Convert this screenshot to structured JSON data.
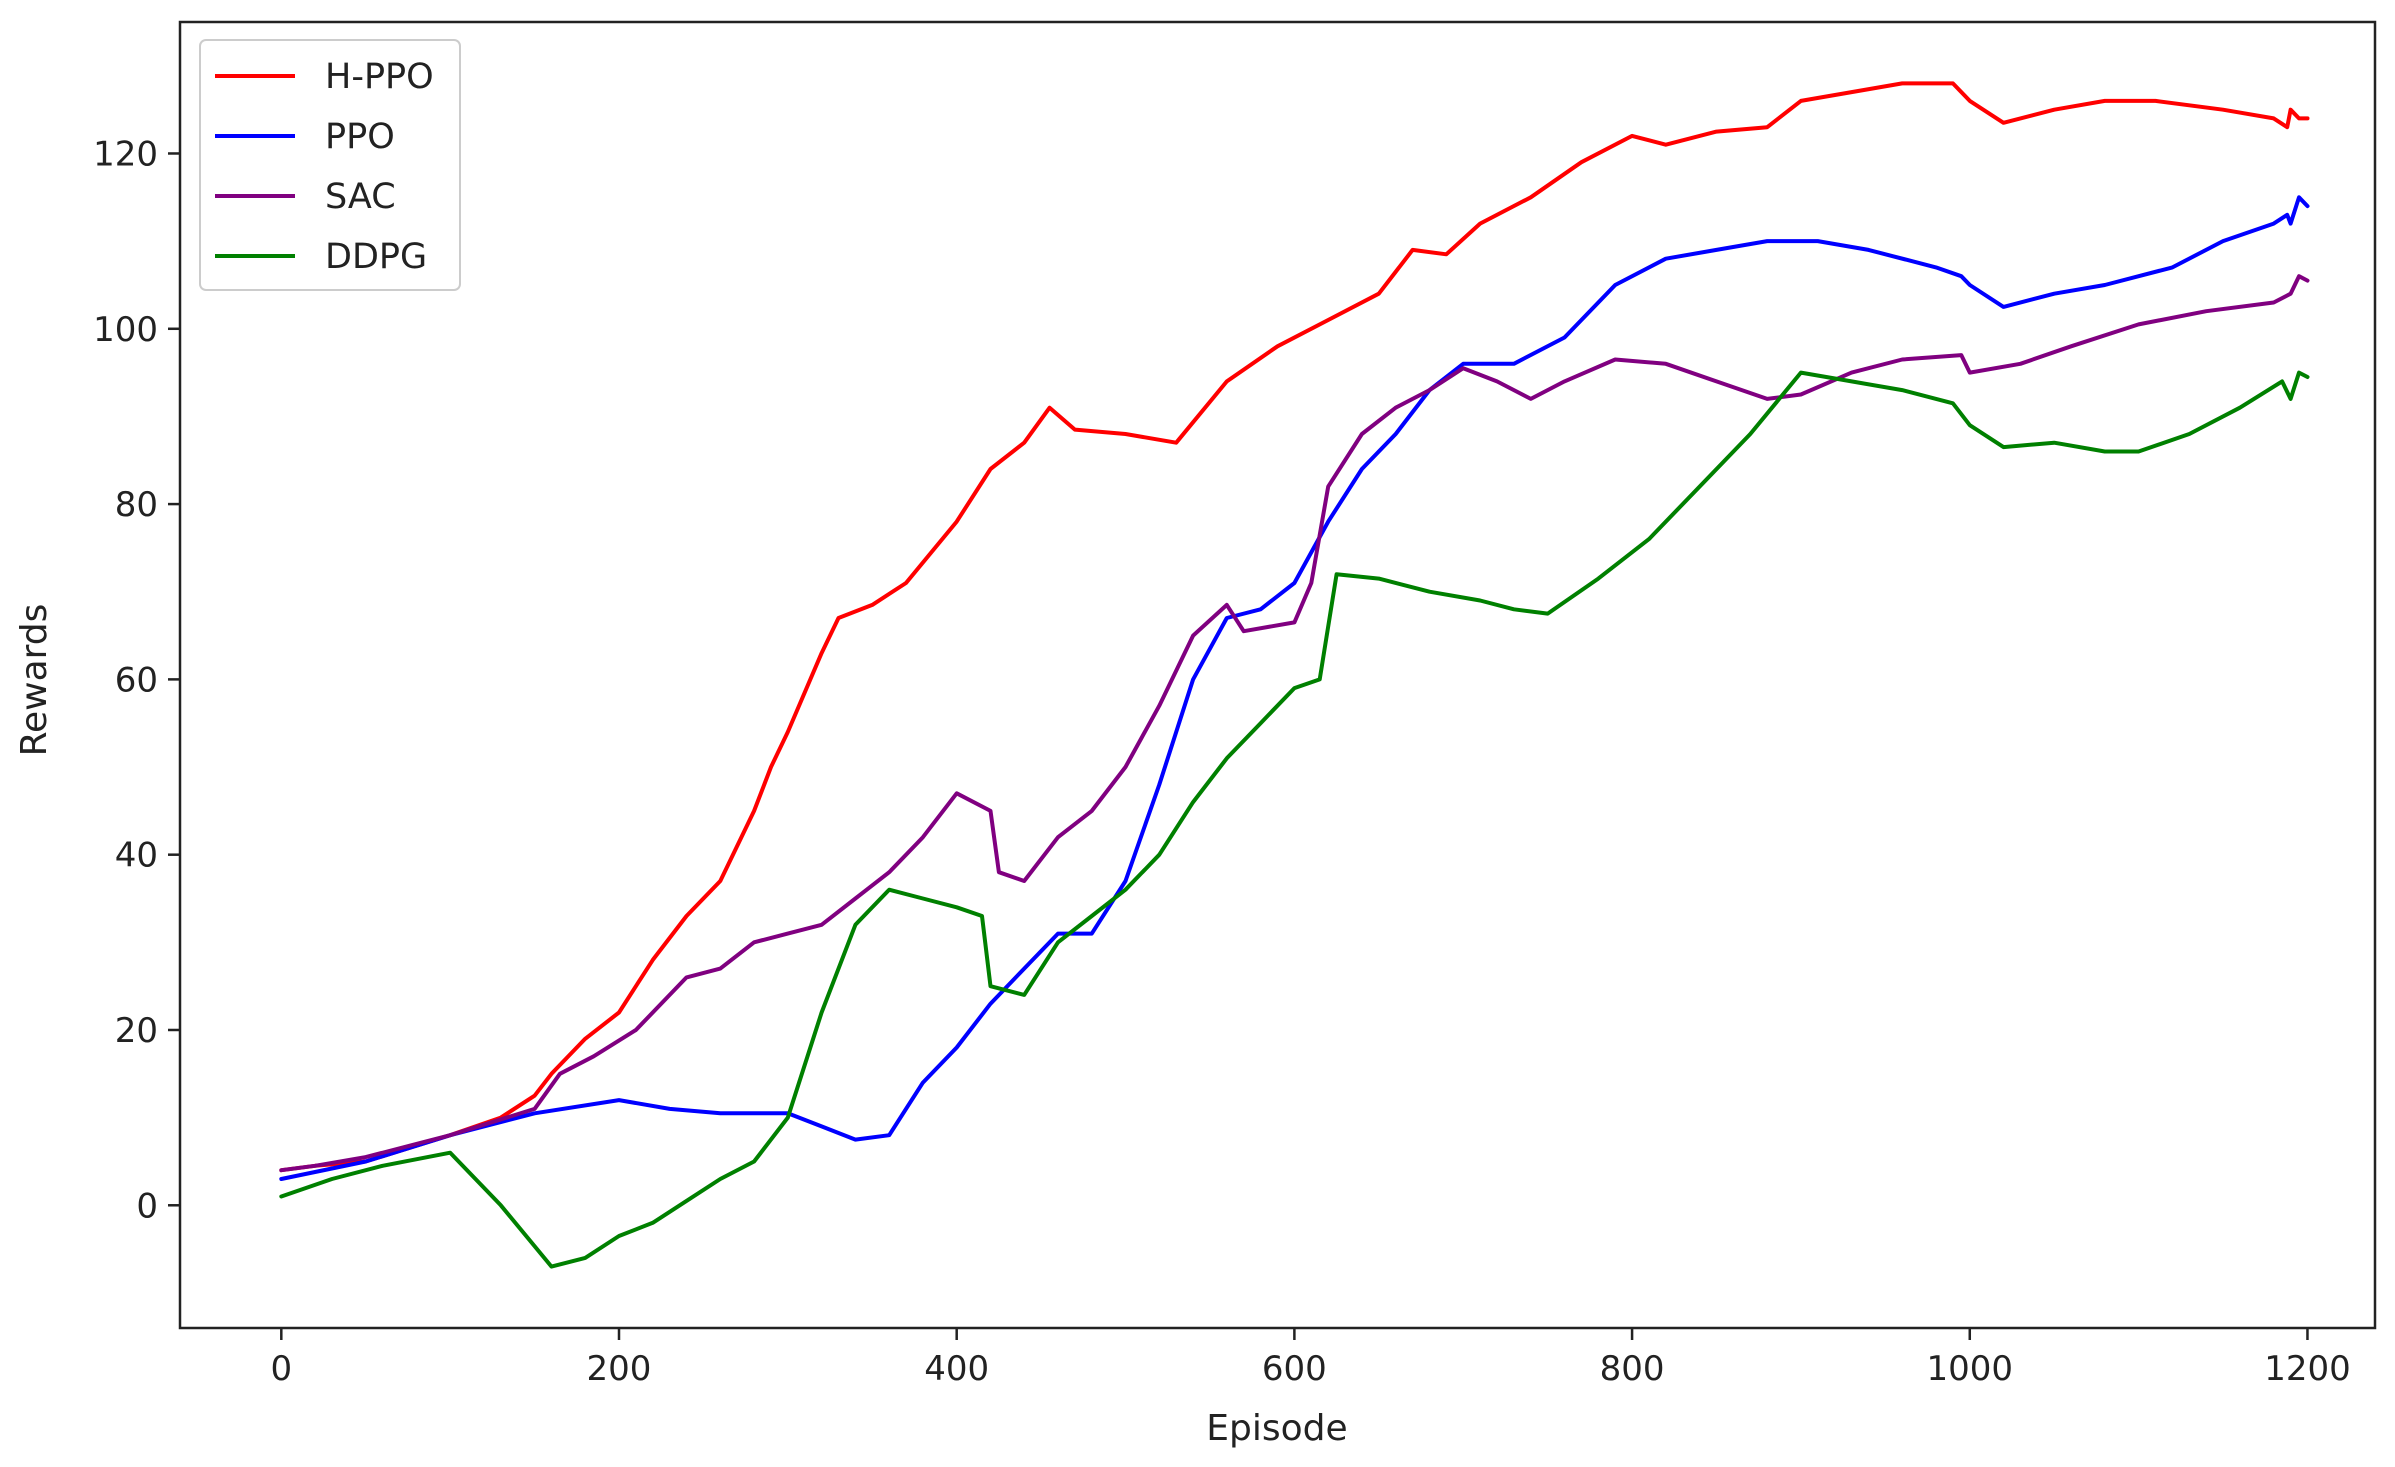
{
  "chart_data": {
    "type": "line",
    "title": "",
    "xlabel": "Episode",
    "ylabel": "Rewards",
    "xlim": [
      -60,
      1240
    ],
    "ylim": [
      -14,
      135
    ],
    "xticks": [
      0,
      200,
      400,
      600,
      800,
      1000,
      1200
    ],
    "yticks": [
      0,
      20,
      40,
      60,
      80,
      100,
      120
    ],
    "grid": false,
    "legend_position": "top-left",
    "series": [
      {
        "name": "H-PPO",
        "color": "#ff0000",
        "points": [
          [
            0,
            4
          ],
          [
            20,
            4.5
          ],
          [
            50,
            5
          ],
          [
            100,
            8
          ],
          [
            130,
            10
          ],
          [
            150,
            12.5
          ],
          [
            160,
            15
          ],
          [
            180,
            19
          ],
          [
            200,
            22
          ],
          [
            220,
            28
          ],
          [
            240,
            33
          ],
          [
            260,
            37
          ],
          [
            280,
            45
          ],
          [
            290,
            50
          ],
          [
            300,
            54
          ],
          [
            320,
            63
          ],
          [
            330,
            67
          ],
          [
            350,
            68.5
          ],
          [
            370,
            71
          ],
          [
            400,
            78
          ],
          [
            420,
            84
          ],
          [
            440,
            87
          ],
          [
            455,
            91
          ],
          [
            470,
            88.5
          ],
          [
            500,
            88
          ],
          [
            530,
            87
          ],
          [
            560,
            94
          ],
          [
            590,
            98
          ],
          [
            620,
            101
          ],
          [
            650,
            104
          ],
          [
            670,
            109
          ],
          [
            690,
            108.5
          ],
          [
            710,
            112
          ],
          [
            740,
            115
          ],
          [
            770,
            119
          ],
          [
            800,
            122
          ],
          [
            820,
            121
          ],
          [
            850,
            122.5
          ],
          [
            880,
            123
          ],
          [
            900,
            126
          ],
          [
            930,
            127
          ],
          [
            960,
            128
          ],
          [
            990,
            128
          ],
          [
            1000,
            126
          ],
          [
            1020,
            123.5
          ],
          [
            1050,
            125
          ],
          [
            1080,
            126
          ],
          [
            1110,
            126
          ],
          [
            1150,
            125
          ],
          [
            1180,
            124
          ],
          [
            1188,
            123
          ],
          [
            1190,
            125
          ],
          [
            1195,
            124
          ],
          [
            1200,
            124
          ]
        ]
      },
      {
        "name": "PPO",
        "color": "#0000ff",
        "points": [
          [
            0,
            3
          ],
          [
            50,
            5
          ],
          [
            100,
            8
          ],
          [
            150,
            10.5
          ],
          [
            200,
            12
          ],
          [
            230,
            11
          ],
          [
            260,
            10.5
          ],
          [
            300,
            10.5
          ],
          [
            320,
            9
          ],
          [
            340,
            7.5
          ],
          [
            360,
            8
          ],
          [
            380,
            14
          ],
          [
            400,
            18
          ],
          [
            420,
            23
          ],
          [
            440,
            27
          ],
          [
            460,
            31
          ],
          [
            480,
            31
          ],
          [
            500,
            37
          ],
          [
            520,
            48
          ],
          [
            540,
            60
          ],
          [
            560,
            67
          ],
          [
            580,
            68
          ],
          [
            600,
            71
          ],
          [
            620,
            78
          ],
          [
            640,
            84
          ],
          [
            660,
            88
          ],
          [
            680,
            93
          ],
          [
            700,
            96
          ],
          [
            730,
            96
          ],
          [
            760,
            99
          ],
          [
            790,
            105
          ],
          [
            820,
            108
          ],
          [
            850,
            109
          ],
          [
            880,
            110
          ],
          [
            910,
            110
          ],
          [
            940,
            109
          ],
          [
            980,
            107
          ],
          [
            995,
            106
          ],
          [
            1000,
            105
          ],
          [
            1020,
            102.5
          ],
          [
            1050,
            104
          ],
          [
            1080,
            105
          ],
          [
            1120,
            107
          ],
          [
            1150,
            110
          ],
          [
            1180,
            112
          ],
          [
            1188,
            113
          ],
          [
            1190,
            112
          ],
          [
            1195,
            115
          ],
          [
            1200,
            114
          ]
        ]
      },
      {
        "name": "SAC",
        "color": "#800080",
        "points": [
          [
            0,
            4
          ],
          [
            20,
            4.5
          ],
          [
            50,
            5.5
          ],
          [
            100,
            8
          ],
          [
            150,
            11
          ],
          [
            165,
            15
          ],
          [
            185,
            17
          ],
          [
            210,
            20
          ],
          [
            240,
            26
          ],
          [
            260,
            27
          ],
          [
            280,
            30
          ],
          [
            300,
            31
          ],
          [
            320,
            32
          ],
          [
            340,
            35
          ],
          [
            360,
            38
          ],
          [
            380,
            42
          ],
          [
            400,
            47
          ],
          [
            420,
            45
          ],
          [
            425,
            38
          ],
          [
            440,
            37
          ],
          [
            460,
            42
          ],
          [
            480,
            45
          ],
          [
            500,
            50
          ],
          [
            520,
            57
          ],
          [
            540,
            65
          ],
          [
            560,
            68.5
          ],
          [
            570,
            65.5
          ],
          [
            600,
            66.5
          ],
          [
            610,
            71
          ],
          [
            620,
            82
          ],
          [
            640,
            88
          ],
          [
            660,
            91
          ],
          [
            680,
            93
          ],
          [
            700,
            95.5
          ],
          [
            720,
            94
          ],
          [
            740,
            92
          ],
          [
            760,
            94
          ],
          [
            790,
            96.5
          ],
          [
            820,
            96
          ],
          [
            850,
            94
          ],
          [
            880,
            92
          ],
          [
            900,
            92.5
          ],
          [
            930,
            95
          ],
          [
            960,
            96.5
          ],
          [
            995,
            97
          ],
          [
            1000,
            95
          ],
          [
            1030,
            96
          ],
          [
            1060,
            98
          ],
          [
            1100,
            100.5
          ],
          [
            1140,
            102
          ],
          [
            1180,
            103
          ],
          [
            1190,
            104
          ],
          [
            1195,
            106
          ],
          [
            1200,
            105.5
          ]
        ]
      },
      {
        "name": "DDPG",
        "color": "#008000",
        "points": [
          [
            0,
            1
          ],
          [
            30,
            3
          ],
          [
            60,
            4.5
          ],
          [
            100,
            6
          ],
          [
            130,
            0
          ],
          [
            160,
            -7
          ],
          [
            180,
            -6
          ],
          [
            200,
            -3.5
          ],
          [
            220,
            -2
          ],
          [
            240,
            0.5
          ],
          [
            260,
            3
          ],
          [
            280,
            5
          ],
          [
            300,
            10
          ],
          [
            320,
            22
          ],
          [
            340,
            32
          ],
          [
            360,
            36
          ],
          [
            380,
            35
          ],
          [
            400,
            34
          ],
          [
            415,
            33
          ],
          [
            420,
            25
          ],
          [
            440,
            24
          ],
          [
            460,
            30
          ],
          [
            480,
            33
          ],
          [
            500,
            36
          ],
          [
            520,
            40
          ],
          [
            540,
            46
          ],
          [
            560,
            51
          ],
          [
            580,
            55
          ],
          [
            600,
            59
          ],
          [
            615,
            60
          ],
          [
            625,
            72
          ],
          [
            650,
            71.5
          ],
          [
            680,
            70
          ],
          [
            710,
            69
          ],
          [
            730,
            68
          ],
          [
            750,
            67.5
          ],
          [
            780,
            71.5
          ],
          [
            810,
            76
          ],
          [
            840,
            82
          ],
          [
            870,
            88
          ],
          [
            900,
            95
          ],
          [
            930,
            94
          ],
          [
            960,
            93
          ],
          [
            990,
            91.5
          ],
          [
            1000,
            89
          ],
          [
            1020,
            86.5
          ],
          [
            1050,
            87
          ],
          [
            1080,
            86
          ],
          [
            1100,
            86
          ],
          [
            1130,
            88
          ],
          [
            1160,
            91
          ],
          [
            1185,
            94
          ],
          [
            1190,
            92
          ],
          [
            1195,
            95
          ],
          [
            1200,
            94.5
          ]
        ]
      }
    ]
  }
}
